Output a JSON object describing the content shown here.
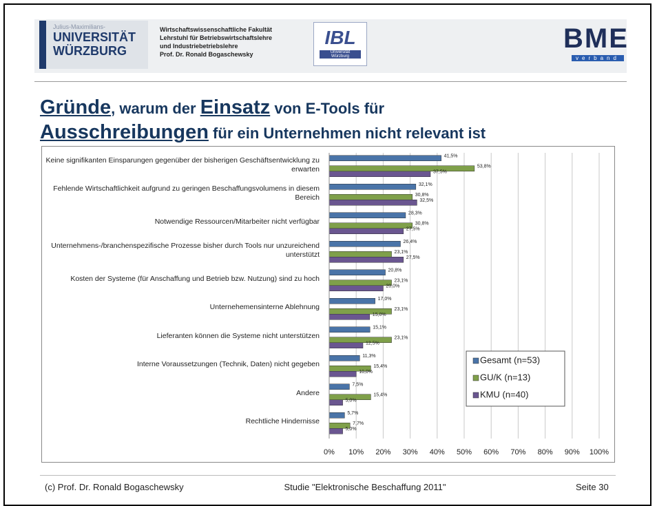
{
  "header": {
    "uni": [
      "Julius-Maximilians-",
      "UNIVERSITÄT",
      "WÜRZBURG"
    ],
    "faculty": [
      "Wirtschaftswissenschaftliche Fakultät",
      "Lehrstuhl für Betriebswirtschaftslehre",
      "und Industriebetriebslehre",
      "Prof. Dr. Ronald Bogaschewsky"
    ],
    "ibl": [
      "IBL",
      "Universität",
      "Würzburg"
    ],
    "bme": [
      "BME",
      "verband"
    ]
  },
  "title": [
    "Gründe",
    ", warum der ",
    "Einsatz",
    " von E-Tools für",
    "Ausschreibungen",
    " für ein Unternehmen nicht relevant ist"
  ],
  "chart_data": {
    "type": "hbar",
    "categories": [
      "Keine signifikanten Einsparungen gegenüber der bisherigen Geschäftsentwicklung zu erwarten",
      "Fehlende Wirtschaftlichkeit aufgrund zu geringen Beschaffungsvolumens in diesem Bereich",
      "Notwendige Ressourcen/Mitarbeiter nicht verfügbar",
      "Unternehmens-/branchenspezifische Prozesse bisher durch Tools nur unzureichend unterstützt",
      "Kosten der Systeme (für Anschaffung und Betrieb bzw. Nutzung) sind zu hoch",
      "Unternehemensinterne Ablehnung",
      "Lieferanten können die Systeme nicht unterstützen",
      "Interne Voraussetzungen (Technik, Daten) nicht gegeben",
      "Andere",
      "Rechtliche Hindernisse"
    ],
    "series": [
      {
        "name": "Gesamt (n=53)",
        "color": "#4a74a8",
        "values": [
          41.5,
          32.1,
          28.3,
          26.4,
          20.8,
          17.0,
          15.1,
          11.3,
          7.5,
          5.7
        ],
        "value_labels": [
          "41,5%",
          "32,1%",
          "28,3%",
          "26,4%",
          "20,8%",
          "17,0%",
          "15,1%",
          "11,3%",
          "7,5%",
          "5,7%"
        ]
      },
      {
        "name": "GU/K (n=13)",
        "color": "#7fa04a",
        "values": [
          53.8,
          30.8,
          30.8,
          23.1,
          23.1,
          23.1,
          23.1,
          15.4,
          15.4,
          7.7
        ],
        "value_labels": [
          "53,8%",
          "30,8%",
          "30,8%",
          "23,1%",
          "23,1%",
          "23,1%",
          "23,1%",
          "15,4%",
          "15,4%",
          "7,7%"
        ]
      },
      {
        "name": "KMU (n=40)",
        "color": "#6a5690",
        "values": [
          37.5,
          32.5,
          27.5,
          27.5,
          20.0,
          15.0,
          12.5,
          10.0,
          5.0,
          5.0
        ],
        "value_labels": [
          "37,5%",
          "32,5%",
          "27,5%",
          "27,5%",
          "20,0%",
          "15,0%",
          "12,5%",
          "10,0%",
          "5,0%",
          "5,0%"
        ]
      }
    ],
    "xlim": [
      0,
      100
    ],
    "xticks": [
      {
        "value": 0,
        "label": "0%"
      },
      {
        "value": 10,
        "label": "10%"
      },
      {
        "value": 20,
        "label": "20%"
      },
      {
        "value": 30,
        "label": "30%"
      },
      {
        "value": 40,
        "label": "40%"
      },
      {
        "value": 50,
        "label": "50%"
      },
      {
        "value": 60,
        "label": "60%"
      },
      {
        "value": 70,
        "label": "70%"
      },
      {
        "value": 80,
        "label": "80%"
      },
      {
        "value": 90,
        "label": "90%"
      },
      {
        "value": 100,
        "label": "100%"
      }
    ],
    "grid": true,
    "legend": "lower right"
  },
  "footer": [
    "(c) Prof. Dr. Ronald Bogaschewsky",
    "Studie \"Elektronische Beschaffung 2011\"",
    "Seite 30"
  ]
}
